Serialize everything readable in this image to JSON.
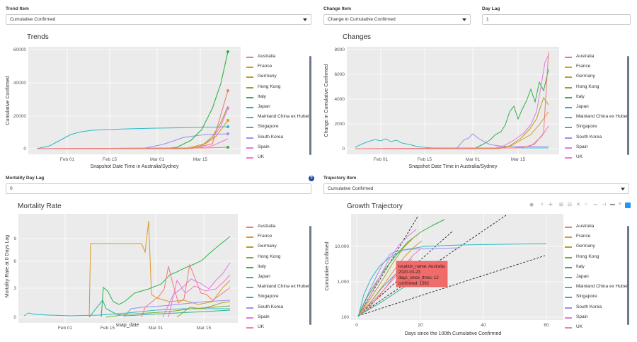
{
  "controls": {
    "trend_item": {
      "label": "Trend Item",
      "value": "Cumulative Confirmed"
    },
    "change_item": {
      "label": "Change Item",
      "value": "Change in Cumulative Confirmed"
    },
    "day_lag": {
      "label": "Day Lag",
      "value": "1"
    },
    "mortality_day_lag": {
      "label": "Mortality Day Lag",
      "value": "0"
    },
    "trajectory_item": {
      "label": "Trajectory Item",
      "value": "Cumulative Confirmed"
    }
  },
  "legend_items": [
    "Australia",
    "France",
    "Germany",
    "Hong Kong",
    "Italy",
    "Japan",
    "Mainland China ex Hubei",
    "Singapore",
    "South Korea",
    "Spain",
    "UK"
  ],
  "colors": {
    "Australia": "#f07a7a",
    "France": "#d99a2b",
    "Germany": "#b5a020",
    "Hong Kong": "#7aae2a",
    "Italy": "#2fb24a",
    "Japan": "#2bb29a",
    "Mainland China ex Hubei": "#2bbcc8",
    "Singapore": "#3fa6e0",
    "South Korea": "#9b8ff0",
    "Spain": "#e07ae8",
    "UK": "#f47ac4"
  },
  "trends": {
    "title": "Trends",
    "xlabel": "Snapshot Date Time in Australia/Sydney",
    "ylabel": "Cumulative Confirmed",
    "yticks": [
      "0",
      "20000",
      "40000",
      "60000"
    ],
    "xticks": [
      "Feb 01",
      "Feb 15",
      "Mar 01",
      "Mar 15"
    ]
  },
  "changes": {
    "title": "Changes",
    "xlabel": "Snapshot Date Time in Australia/Sydney",
    "ylabel": "Change in Cumulative Confirmed",
    "yticks": [
      "0",
      "2000",
      "4000",
      "6000",
      "8000"
    ],
    "xticks": [
      "Feb 01",
      "Feb 15",
      "Mar 01",
      "Mar 15"
    ]
  },
  "mortality": {
    "title": "Mortality Rate",
    "xlabel": "snap_date",
    "ylabel": "Mortality Rate at 0 Days Lag",
    "yticks": [
      "0",
      "3",
      "6",
      "9"
    ],
    "xticks": [
      "Feb 01",
      "Feb 15",
      "Mar 01",
      "Mar 15"
    ]
  },
  "trajectory": {
    "title": "Growth Trajectory",
    "xlabel": "Days since the 100th Cumulative Confirmed",
    "ylabel": "Cumulative Confirmed",
    "yticks": [
      "100",
      "1,000",
      "10,000"
    ],
    "xticks": [
      "0",
      "20",
      "40",
      "60"
    ],
    "tooltip": {
      "location_name": "location_name: Australia",
      "date": "2020-03-23",
      "days_since": "days_since_thres: 12",
      "confirmed": "confirmed: 1562"
    }
  },
  "chart_data": [
    {
      "type": "line",
      "title": "Trends",
      "xlabel": "Snapshot Date Time in Australia/Sydney",
      "ylabel": "Cumulative Confirmed",
      "ylim": [
        0,
        62000
      ],
      "series": [
        {
          "name": "Mainland China ex Hubei",
          "values": [
            0,
            1000,
            4500,
            9000,
            11500,
            12500,
            12700,
            12900,
            13000,
            13050,
            13100
          ]
        },
        {
          "name": "Italy",
          "values": [
            0,
            0,
            0,
            0,
            3,
            1000,
            3000,
            10000,
            24000,
            41000,
            59000
          ]
        },
        {
          "name": "Spain",
          "values": [
            0,
            0,
            0,
            0,
            0,
            100,
            400,
            2000,
            9000,
            20000,
            33000
          ]
        },
        {
          "name": "Germany",
          "values": [
            0,
            0,
            0,
            0,
            10,
            50,
            200,
            1500,
            7000,
            16000,
            25000
          ]
        },
        {
          "name": "South Korea",
          "values": [
            0,
            0,
            0,
            0,
            30,
            3000,
            6000,
            7500,
            8200,
            8600,
            8900
          ]
        },
        {
          "name": "Australia",
          "values": [
            0,
            0,
            0,
            0,
            10,
            20,
            50,
            100,
            300,
            800,
            1800
          ]
        }
      ]
    },
    {
      "type": "line",
      "title": "Changes",
      "xlabel": "Snapshot Date Time in Australia/Sydney",
      "ylabel": "Change in Cumulative Confirmed",
      "ylim": [
        0,
        8600
      ],
      "series": [
        {
          "name": "Mainland China ex Hubei",
          "values": [
            0,
            400,
            800,
            600,
            300,
            100,
            50,
            20,
            10,
            5,
            5
          ]
        },
        {
          "name": "Italy",
          "values": [
            0,
            0,
            0,
            0,
            0,
            200,
            500,
            1500,
            3500,
            4500,
            6500
          ]
        },
        {
          "name": "Spain",
          "values": [
            0,
            0,
            0,
            0,
            0,
            0,
            100,
            500,
            1500,
            3000,
            8200
          ]
        }
      ]
    },
    {
      "type": "line",
      "title": "Mortality Rate",
      "xlabel": "snap_date",
      "ylabel": "Mortality Rate at 0 Days Lag",
      "ylim": [
        0,
        11
      ],
      "series": [
        {
          "name": "France",
          "values": [
            0,
            0,
            0,
            8.3,
            8.3,
            10.8,
            2.2,
            2.0,
            2.5,
            4.0
          ]
        },
        {
          "name": "Italy",
          "values": [
            0,
            0,
            0,
            0,
            0,
            2.5,
            3.5,
            5.5,
            7.5,
            9.2
          ]
        },
        {
          "name": "Mainland China ex Hubei",
          "values": [
            0.3,
            0.2,
            0.2,
            0.3,
            0.5,
            0.7,
            0.8,
            0.9,
            0.9,
            0.9
          ]
        }
      ]
    },
    {
      "type": "line",
      "title": "Growth Trajectory",
      "xlabel": "Days since the 100th Cumulative Confirmed",
      "ylabel": "Cumulative Confirmed",
      "series": [
        {
          "name": "Mainland China ex Hubei",
          "x": [
            0,
            5,
            10,
            20,
            40,
            60
          ],
          "values": [
            100,
            2000,
            6000,
            10000,
            12500,
            13000
          ]
        },
        {
          "name": "Italy",
          "x": [
            0,
            5,
            10,
            20,
            27
          ],
          "values": [
            100,
            600,
            3000,
            25000,
            59000
          ]
        },
        {
          "name": "Australia",
          "x": [
            0,
            5,
            12,
            18
          ],
          "values": [
            100,
            300,
            1562,
            2500
          ]
        }
      ]
    }
  ]
}
